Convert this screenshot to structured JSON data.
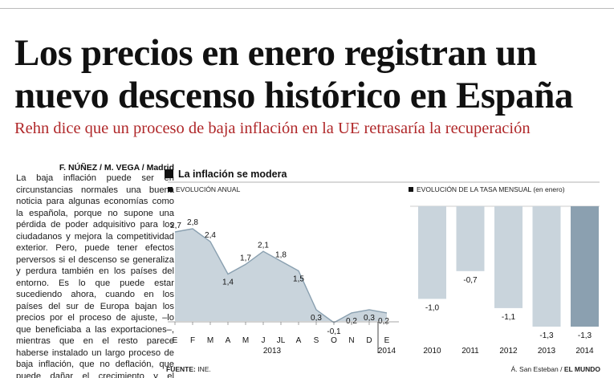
{
  "article": {
    "headline": "Los precios en enero registran un nuevo descenso histórico en España",
    "subtitle": "Rehn dice que un proceso de baja inflación en la UE retrasaría la recuperación",
    "byline": "F. NÚÑEZ / M. VEGA / Madrid",
    "body": "La baja inflación puede ser en circunstancias normales una buena noticia para algunas economías como la española, porque no supone una pérdida de poder adquisitivo para los ciudadanos y mejora la competitividad exterior. Pero, puede tener efectos perversos si el descenso se generaliza y perdura también en los países del entorno. Es lo que puede estar sucediendo ahora, cuando en los países del sur de Europa bajan los precios por el proceso de ajuste, –lo que beneficiaba a las exportaciones–, mientras que en el resto parece haberse instalado un largo proceso de baja inflación, que no deflación, que puede dañar el crecimiento y el empleo."
  },
  "graphic": {
    "title": "La inflación se modera",
    "source_label": "FUENTE:",
    "source_value": "INE.",
    "credit_author": "Á. San Esteban /",
    "credit_outlet": "EL MUNDO"
  },
  "colors": {
    "accent": "#b0282a",
    "area_fill": "#c9d4dc",
    "area_line": "#8aa0b0",
    "bar_light": "#c9d4dc",
    "bar_dark": "#8ba0b0"
  },
  "chart_data": [
    {
      "type": "area",
      "subtitle": "EVOLUCIÓN ANUAL",
      "categories": [
        "E",
        "F",
        "M",
        "A",
        "M",
        "J",
        "JL",
        "A",
        "S",
        "O",
        "N",
        "D",
        "E"
      ],
      "values": [
        2.7,
        2.8,
        2.4,
        1.4,
        1.7,
        2.1,
        1.8,
        1.5,
        0.3,
        -0.1,
        0.2,
        0.3,
        0.2
      ],
      "value_labels": [
        "2,7",
        "2,8",
        "2,4",
        "1,4",
        "1,7",
        "2,1",
        "1,8",
        "1,5",
        "0,3",
        "-0,1",
        "0,2",
        "0,3",
        "0,2"
      ],
      "year_labels": [
        "2013",
        "2014"
      ],
      "ylim": [
        -0.3,
        3.0
      ],
      "grid": false
    },
    {
      "type": "bar",
      "subtitle": "EVOLUCIÓN DE LA TASA MENSUAL (en enero)",
      "categories": [
        "2010",
        "2011",
        "2012",
        "2013",
        "2014"
      ],
      "values": [
        -1.0,
        -0.7,
        -1.1,
        -1.3,
        -1.3
      ],
      "value_labels": [
        "-1,0",
        "-0,7",
        "-1,1",
        "-1,3",
        "-1,3"
      ],
      "ylim": [
        -1.4,
        0
      ]
    }
  ]
}
